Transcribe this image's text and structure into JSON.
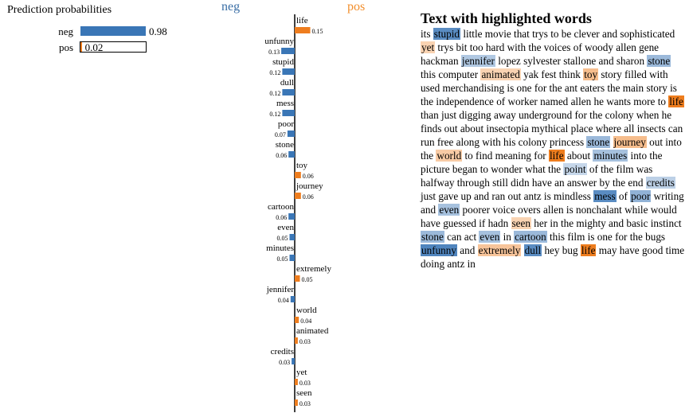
{
  "colors": {
    "neg": "#3a76b6",
    "pos": "#ee7d1e",
    "neg_head": "#3a6ea5",
    "pos_head": "#f28e2b"
  },
  "prediction": {
    "title": "Prediction probabilities",
    "rows": [
      {
        "label": "neg",
        "value": 0.98,
        "display": "0.98",
        "class": "neg"
      },
      {
        "label": "pos",
        "value": 0.02,
        "display": "0.02",
        "class": "pos"
      }
    ]
  },
  "headers": {
    "neg": "neg",
    "pos": "pos"
  },
  "chart_data": {
    "type": "bar",
    "categories": [
      "life",
      "unfunny",
      "stupid",
      "dull",
      "mess",
      "poor",
      "stone",
      "toy",
      "journey",
      "cartoon",
      "even",
      "minutes",
      "extremely",
      "jennifer",
      "world",
      "animated",
      "credits",
      "yet",
      "seen"
    ],
    "values": [
      0.15,
      -0.13,
      -0.12,
      -0.12,
      -0.12,
      -0.07,
      -0.06,
      0.06,
      0.06,
      -0.06,
      -0.05,
      -0.05,
      0.05,
      -0.04,
      0.04,
      0.03,
      -0.03,
      0.03,
      0.03
    ],
    "labels": [
      "0.15",
      "0.13",
      "0.12",
      "0.12",
      "0.12",
      "0.07",
      "0.06",
      "0.06",
      "0.06",
      "0.06",
      "0.05",
      "0.05",
      "0.05",
      "0.04",
      "0.04",
      "0.03",
      "0.03",
      "0.03",
      "0.03"
    ],
    "series": [
      {
        "name": "neg",
        "color": "#3a76b6"
      },
      {
        "name": "pos",
        "color": "#ee7d1e"
      }
    ]
  },
  "text_panel": {
    "title": "Text with highlighted words",
    "tokens": [
      {
        "t": "its "
      },
      {
        "t": "stupid",
        "w": -0.12
      },
      {
        "t": " little movie that trys to be clever and sophisticated "
      },
      {
        "t": "yet",
        "w": 0.03
      },
      {
        "t": " trys bit too hard with the voices of woody allen gene hackman "
      },
      {
        "t": "jennifer",
        "w": -0.04
      },
      {
        "t": " lopez sylvester stallone and sharon "
      },
      {
        "t": "stone",
        "w": -0.06
      },
      {
        "t": " this computer "
      },
      {
        "t": "animated",
        "w": 0.03
      },
      {
        "t": " yak fest think "
      },
      {
        "t": "toy",
        "w": 0.06
      },
      {
        "t": " story filled with used merchandising is one for the ant eaters the main story is the independence of worker named allen he wants more to "
      },
      {
        "t": "life",
        "w": 0.15
      },
      {
        "t": " than just digging away underground for the colony when he finds out about insectopia mythical place where all insects can run free along with his colony princess "
      },
      {
        "t": "stone",
        "w": -0.06
      },
      {
        "t": " "
      },
      {
        "t": "journey",
        "w": 0.06
      },
      {
        "t": " out into the "
      },
      {
        "t": "world",
        "w": 0.04
      },
      {
        "t": " to find meaning for "
      },
      {
        "t": "life",
        "w": 0.15
      },
      {
        "t": " about "
      },
      {
        "t": "minutes",
        "w": -0.05
      },
      {
        "t": " into the picture began to wonder what the "
      },
      {
        "t": "point",
        "w": -0.02
      },
      {
        "t": " of the film was halfway through still didn have an answer by the end "
      },
      {
        "t": "credits",
        "w": -0.03
      },
      {
        "t": " just gave up and ran out antz is mindless "
      },
      {
        "t": "mess",
        "w": -0.12
      },
      {
        "t": " of "
      },
      {
        "t": "poor",
        "w": -0.07
      },
      {
        "t": " writing and "
      },
      {
        "t": "even",
        "w": -0.05
      },
      {
        "t": " poorer voice overs allen is nonchalant while would have guessed if hadn "
      },
      {
        "t": "seen",
        "w": 0.03
      },
      {
        "t": " her in the mighty and basic instinct "
      },
      {
        "t": "stone",
        "w": -0.06
      },
      {
        "t": " can act "
      },
      {
        "t": "even",
        "w": -0.05
      },
      {
        "t": " in "
      },
      {
        "t": "cartoon",
        "w": -0.06
      },
      {
        "t": " this film is one for the bugs "
      },
      {
        "t": "unfunny",
        "w": -0.13
      },
      {
        "t": " and "
      },
      {
        "t": "extremely",
        "w": 0.05
      },
      {
        "t": " "
      },
      {
        "t": "dull",
        "w": -0.12
      },
      {
        "t": " hey bug "
      },
      {
        "t": "life",
        "w": 0.15
      },
      {
        "t": " may have good time doing antz in"
      }
    ]
  }
}
